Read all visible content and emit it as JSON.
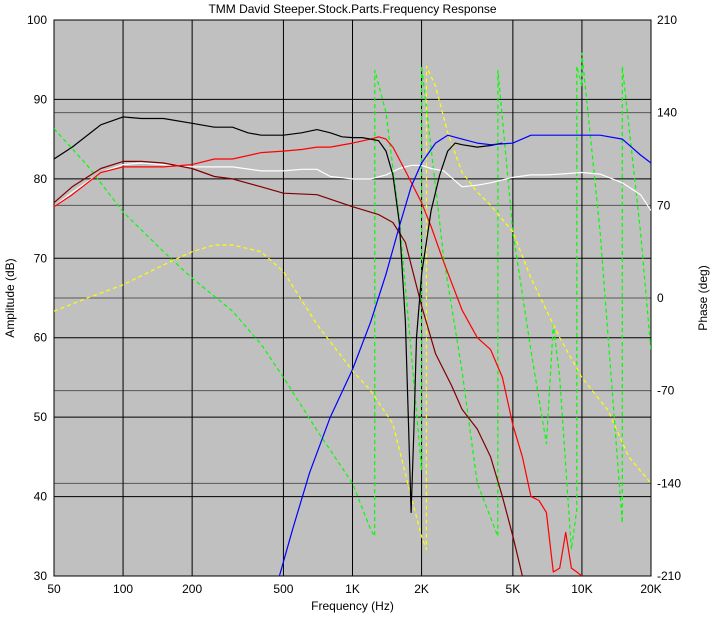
{
  "chart_data": {
    "type": "line",
    "title": "TMM David Steeper.Stock.Parts.Frequency Response",
    "xlabel": "Frequency (Hz)",
    "ylabel_left": "Amplitude (dB)",
    "ylabel_right": "Phase (deg)",
    "x_scale": "log",
    "xlim": [
      50,
      20000
    ],
    "ylim_left": [
      30,
      100
    ],
    "ylim_right": [
      -210,
      210
    ],
    "grid": true,
    "x_ticks": [
      {
        "value": 50,
        "label": "50"
      },
      {
        "value": 100,
        "label": "100"
      },
      {
        "value": 200,
        "label": "200"
      },
      {
        "value": 500,
        "label": "500"
      },
      {
        "value": 1000,
        "label": "1K"
      },
      {
        "value": 2000,
        "label": "2K"
      },
      {
        "value": 5000,
        "label": "5K"
      },
      {
        "value": 10000,
        "label": "10K"
      },
      {
        "value": 20000,
        "label": "20K"
      }
    ],
    "y_ticks_left": [
      30,
      40,
      50,
      60,
      70,
      80,
      90,
      100
    ],
    "y_ticks_right": [
      -210,
      -140,
      -70,
      0,
      70,
      140,
      210
    ],
    "colors": {
      "plot_background": "#c0c0c0",
      "grid": "#000000",
      "black_trace": "#000000",
      "red_trace": "#ff0000",
      "darkred_trace": "#800000",
      "white_trace": "#ffffff",
      "blue_trace": "#0000ff",
      "yellow_dashed": "#ffff00",
      "green_dashed": "#00ff00"
    },
    "series": [
      {
        "key": "black",
        "axis": "left",
        "color": "#000000",
        "dashed": false,
        "x": [
          50,
          60,
          80,
          100,
          120,
          150,
          200,
          250,
          300,
          350,
          400,
          500,
          600,
          700,
          800,
          900,
          1000,
          1100,
          1200,
          1300,
          1400,
          1500,
          1600,
          1700,
          1750,
          1800,
          1850,
          1900,
          2000,
          2200,
          2400,
          2600,
          2800,
          3000,
          3500,
          4000,
          4500
        ],
        "y": [
          82.5,
          84,
          86.8,
          87.8,
          87.6,
          87.6,
          87,
          86.5,
          86.5,
          85.8,
          85.5,
          85.5,
          85.8,
          86.2,
          85.8,
          85.3,
          85.2,
          85.2,
          85,
          84.8,
          83.5,
          80.5,
          74.5,
          62,
          50,
          38,
          48,
          60,
          68,
          76,
          80.5,
          83.5,
          84.5,
          84.3,
          84,
          84.2,
          84.5
        ]
      },
      {
        "key": "red",
        "axis": "left",
        "color": "#ff0000",
        "dashed": false,
        "x": [
          50,
          60,
          80,
          100,
          120,
          150,
          200,
          250,
          300,
          400,
          500,
          600,
          700,
          800,
          1000,
          1200,
          1300,
          1400,
          1500,
          1700,
          2000,
          2200,
          2500,
          3000,
          3500,
          4000,
          4500,
          5000,
          5500,
          6000,
          6500,
          7000,
          7500,
          8000,
          8500,
          9000,
          9500,
          10000
        ],
        "y": [
          76.5,
          78,
          80.8,
          81.5,
          81.5,
          81.5,
          81.8,
          82.5,
          82.5,
          83.3,
          83.5,
          83.7,
          84,
          84,
          84.5,
          85,
          85.3,
          85,
          84,
          81,
          77,
          74,
          69.5,
          63.5,
          60,
          58.5,
          55,
          49,
          45,
          40,
          39.5,
          38,
          30.5,
          31,
          35.5,
          31,
          30.5,
          30
        ]
      },
      {
        "key": "darkred",
        "axis": "left",
        "color": "#800000",
        "dashed": false,
        "x": [
          50,
          60,
          80,
          100,
          120,
          150,
          200,
          250,
          300,
          400,
          500,
          700,
          1000,
          1300,
          1500,
          1700,
          2000,
          2300,
          2700,
          3000,
          3500,
          4000,
          4500,
          5000,
          5500
        ],
        "y": [
          77,
          79,
          81.3,
          82.2,
          82.2,
          82,
          81.3,
          80.3,
          80,
          79,
          78.2,
          78,
          76.5,
          75.5,
          74.5,
          72,
          64,
          58,
          54,
          51,
          48.5,
          45,
          40,
          35,
          30
        ]
      },
      {
        "key": "white",
        "axis": "left",
        "color": "#ffffff",
        "dashed": false,
        "x": [
          50,
          60,
          80,
          100,
          120,
          150,
          200,
          250,
          300,
          400,
          500,
          600,
          700,
          800,
          1000,
          1200,
          1400,
          1600,
          1800,
          2000,
          2200,
          2500,
          3000,
          3500,
          4000,
          5000,
          6000,
          7000,
          8000,
          10000,
          12000,
          15000,
          18000,
          20000
        ],
        "y": [
          76.5,
          78.3,
          80.8,
          81.8,
          82,
          81.8,
          81.5,
          81.5,
          81.5,
          81,
          81,
          81.2,
          81.2,
          80.3,
          80,
          80,
          80.5,
          81.3,
          81.7,
          81.7,
          81.3,
          81,
          79,
          79.2,
          79.5,
          80.2,
          80.5,
          80.5,
          80.6,
          80.8,
          80.6,
          79.5,
          78,
          76
        ]
      },
      {
        "key": "blue",
        "axis": "left",
        "color": "#0000ff",
        "dashed": false,
        "x": [
          480,
          550,
          650,
          800,
          1000,
          1200,
          1400,
          1600,
          1800,
          2000,
          2300,
          2600,
          3000,
          3500,
          4000,
          5000,
          6000,
          7000,
          8000,
          10000,
          12000,
          15000,
          18000,
          20000
        ],
        "y": [
          30,
          36,
          43,
          50,
          56,
          62,
          68,
          74,
          79,
          82,
          84.5,
          85.5,
          85,
          84.5,
          84.3,
          84.5,
          85.5,
          85.5,
          85.5,
          85.5,
          85.5,
          85,
          83,
          82
        ]
      },
      {
        "key": "yellow",
        "axis": "right",
        "color": "#ffff00",
        "dashed": true,
        "x": [
          50,
          70,
          100,
          150,
          200,
          250,
          300,
          400,
          500,
          700,
          1000,
          1200,
          1500,
          1800,
          2000,
          2100,
          2101,
          2300,
          2600,
          3000,
          3500,
          4000,
          5000,
          6000,
          8000,
          10000,
          13000,
          16000,
          20000
        ],
        "y": [
          -10,
          0,
          10,
          25,
          35,
          40,
          40,
          35,
          20,
          -20,
          -55,
          -70,
          -95,
          -150,
          -180,
          -190,
          175,
          160,
          125,
          95,
          80,
          70,
          50,
          15,
          -30,
          -60,
          -85,
          -120,
          -140
        ]
      },
      {
        "key": "green",
        "axis": "right",
        "color": "#00ff00",
        "dashed": true,
        "x": [
          50,
          70,
          100,
          150,
          200,
          300,
          400,
          500,
          700,
          1000,
          1200,
          1250,
          1251,
          1400,
          1600,
          1800,
          2000,
          2001,
          2500,
          3000,
          3500,
          4300,
          4301,
          5000,
          6000,
          7000,
          7500,
          8000,
          9000,
          9500,
          9501,
          10000,
          10001,
          12000,
          15000,
          15001,
          18000,
          20000
        ],
        "y": [
          128,
          100,
          65,
          35,
          15,
          -10,
          -35,
          -60,
          -100,
          -140,
          -175,
          -180,
          172,
          140,
          60,
          -40,
          -130,
          175,
          30,
          -55,
          -140,
          -180,
          172,
          50,
          -40,
          -110,
          -20,
          -60,
          -190,
          -160,
          175,
          160,
          185,
          50,
          -170,
          175,
          50,
          -40
        ]
      }
    ]
  }
}
